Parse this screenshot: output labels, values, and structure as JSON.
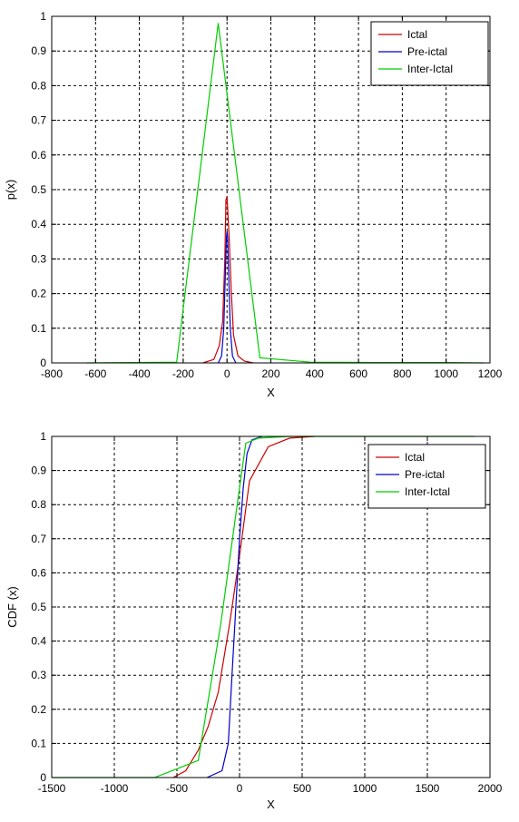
{
  "chart_data": [
    {
      "type": "line",
      "xlabel": "X",
      "ylabel": "p(x)",
      "xlim": [
        -800,
        1200
      ],
      "ylim": [
        0,
        1
      ],
      "xticks": [
        -800,
        -600,
        -400,
        -200,
        0,
        200,
        400,
        600,
        800,
        1000,
        1200
      ],
      "yticks": [
        0,
        0.1,
        0.2,
        0.3,
        0.4,
        0.5,
        0.6,
        0.7,
        0.8,
        0.9,
        1
      ],
      "grid": true,
      "legend_position": "top-right",
      "series": [
        {
          "name": "Ictal",
          "color": "#cc0000",
          "x": [
            -110,
            -60,
            -35,
            -20,
            -10,
            -5,
            0,
            5,
            10,
            20,
            30,
            50,
            80,
            120
          ],
          "y": [
            0,
            0.01,
            0.05,
            0.12,
            0.3,
            0.47,
            0.48,
            0.42,
            0.36,
            0.2,
            0.08,
            0.02,
            0.005,
            0
          ]
        },
        {
          "name": "Pre-ictal",
          "color": "#0000cc",
          "x": [
            -40,
            -25,
            -15,
            -8,
            -3,
            0,
            3,
            8,
            15,
            25,
            40
          ],
          "y": [
            0,
            0.02,
            0.1,
            0.25,
            0.36,
            0.38,
            0.36,
            0.25,
            0.1,
            0.02,
            0
          ]
        },
        {
          "name": "Inter-Ictal",
          "color": "#00cc00",
          "x": [
            -640,
            -230,
            -40,
            150,
            380,
            700,
            1000,
            1170
          ],
          "y": [
            0,
            0.002,
            0.98,
            0.015,
            0.002,
            0.001,
            0.001,
            0
          ]
        }
      ]
    },
    {
      "type": "line",
      "xlabel": "X",
      "ylabel": "CDF (x)",
      "xlim": [
        -1500,
        2000
      ],
      "ylim": [
        0,
        1
      ],
      "xticks": [
        -1500,
        -1000,
        -500,
        0,
        500,
        1000,
        1500,
        2000
      ],
      "yticks": [
        0,
        0.1,
        0.2,
        0.3,
        0.4,
        0.5,
        0.6,
        0.7,
        0.8,
        0.9,
        1
      ],
      "grid": true,
      "legend_position": "top-right",
      "series": [
        {
          "name": "Ictal",
          "color": "#cc0000",
          "x": [
            -530,
            -430,
            -330,
            -250,
            -170,
            -80,
            0,
            80,
            230,
            400,
            600
          ],
          "y": [
            0,
            0.02,
            0.08,
            0.15,
            0.25,
            0.45,
            0.65,
            0.87,
            0.97,
            0.995,
            1
          ]
        },
        {
          "name": "Pre-ictal",
          "color": "#0000cc",
          "x": [
            -260,
            -140,
            -90,
            -60,
            -30,
            0,
            30,
            60,
            100,
            180
          ],
          "y": [
            0,
            0.02,
            0.1,
            0.3,
            0.5,
            0.7,
            0.85,
            0.95,
            0.99,
            1
          ]
        },
        {
          "name": "Inter-Ictal",
          "color": "#00cc00",
          "x": [
            -1500,
            -680,
            -330,
            -150,
            0,
            50,
            150,
            400,
            1000,
            1880
          ],
          "y": [
            0,
            0,
            0.05,
            0.45,
            0.85,
            0.98,
            0.995,
            1,
            1,
            1
          ]
        }
      ]
    }
  ]
}
